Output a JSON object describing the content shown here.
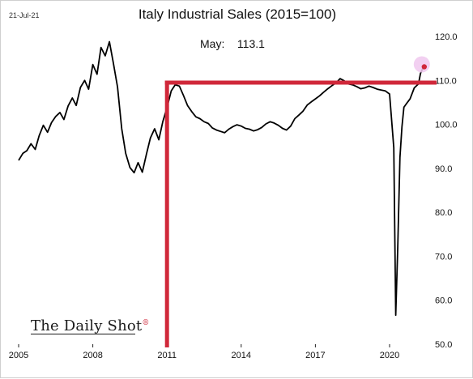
{
  "header": {
    "date": "21-Jul-21"
  },
  "brand": {
    "name": "The Daily Shot",
    "mark": "®"
  },
  "colors": {
    "line": "#000000",
    "annotation": "#d0283a",
    "highlight": "#f0c8ee",
    "background": "#ffffff"
  },
  "chart_data": {
    "type": "line",
    "title": "Italy Industrial Sales (2015=100)",
    "latest_label": "May:",
    "latest_value": "113.1",
    "xlabel": "",
    "ylabel": "",
    "xlim": [
      2005.0,
      2021.9
    ],
    "ylim": [
      50,
      122
    ],
    "x_ticks": [
      {
        "value": 2005,
        "label": "2005"
      },
      {
        "value": 2008,
        "label": "2008"
      },
      {
        "value": 2011,
        "label": "2011"
      },
      {
        "value": 2014,
        "label": "2014"
      },
      {
        "value": 2017,
        "label": "2017"
      },
      {
        "value": 2020,
        "label": "2020"
      }
    ],
    "y_ticks": [
      {
        "value": 50,
        "label": "50.0"
      },
      {
        "value": 60,
        "label": "60.0"
      },
      {
        "value": 70,
        "label": "70.0"
      },
      {
        "value": 80,
        "label": "80.0"
      },
      {
        "value": 90,
        "label": "90.0"
      },
      {
        "value": 100,
        "label": "100.0"
      },
      {
        "value": 110,
        "label": "110.0"
      },
      {
        "value": 120,
        "label": "120.0"
      }
    ],
    "y_axis_side": "right",
    "grid": false,
    "reference_lines": [
      {
        "orientation": "vertical",
        "x": 2011.0,
        "y_from": 50,
        "y_to": 109.5
      },
      {
        "orientation": "horizontal",
        "y": 109.5,
        "x_from": 2011.0,
        "x_to": 2021.9
      }
    ],
    "highlight_point": {
      "x": 2021.37,
      "y": 113.1
    },
    "series": [
      {
        "name": "",
        "points": [
          [
            2005.0,
            91.8
          ],
          [
            2005.17,
            93.4
          ],
          [
            2005.33,
            94.0
          ],
          [
            2005.5,
            95.6
          ],
          [
            2005.67,
            94.3
          ],
          [
            2005.83,
            97.4
          ],
          [
            2006.0,
            99.8
          ],
          [
            2006.17,
            98.2
          ],
          [
            2006.33,
            100.4
          ],
          [
            2006.5,
            101.8
          ],
          [
            2006.67,
            102.7
          ],
          [
            2006.83,
            101.1
          ],
          [
            2007.0,
            104.2
          ],
          [
            2007.17,
            106.0
          ],
          [
            2007.33,
            104.3
          ],
          [
            2007.5,
            108.4
          ],
          [
            2007.67,
            110.0
          ],
          [
            2007.83,
            108.0
          ],
          [
            2008.0,
            113.6
          ],
          [
            2008.17,
            111.4
          ],
          [
            2008.33,
            117.5
          ],
          [
            2008.5,
            115.6
          ],
          [
            2008.67,
            118.8
          ],
          [
            2008.83,
            114.0
          ],
          [
            2009.0,
            108.5
          ],
          [
            2009.17,
            99.0
          ],
          [
            2009.33,
            93.4
          ],
          [
            2009.5,
            90.2
          ],
          [
            2009.67,
            89.0
          ],
          [
            2009.83,
            91.3
          ],
          [
            2010.0,
            89.1
          ],
          [
            2010.17,
            93.3
          ],
          [
            2010.33,
            96.9
          ],
          [
            2010.5,
            99.0
          ],
          [
            2010.67,
            96.5
          ],
          [
            2010.83,
            100.6
          ],
          [
            2011.0,
            103.8
          ],
          [
            2011.17,
            107.6
          ],
          [
            2011.33,
            109.0
          ],
          [
            2011.5,
            108.7
          ],
          [
            2011.67,
            106.5
          ],
          [
            2011.83,
            104.3
          ],
          [
            2012.0,
            102.9
          ],
          [
            2012.17,
            101.7
          ],
          [
            2012.33,
            101.3
          ],
          [
            2012.5,
            100.6
          ],
          [
            2012.67,
            100.2
          ],
          [
            2012.83,
            99.2
          ],
          [
            2013.0,
            98.7
          ],
          [
            2013.17,
            98.4
          ],
          [
            2013.33,
            98.1
          ],
          [
            2013.5,
            98.9
          ],
          [
            2013.67,
            99.5
          ],
          [
            2013.83,
            99.9
          ],
          [
            2014.0,
            99.6
          ],
          [
            2014.17,
            99.1
          ],
          [
            2014.33,
            98.9
          ],
          [
            2014.5,
            98.5
          ],
          [
            2014.67,
            98.8
          ],
          [
            2014.83,
            99.3
          ],
          [
            2015.0,
            100.1
          ],
          [
            2015.17,
            100.6
          ],
          [
            2015.33,
            100.3
          ],
          [
            2015.5,
            99.8
          ],
          [
            2015.67,
            99.1
          ],
          [
            2015.83,
            98.7
          ],
          [
            2016.0,
            99.6
          ],
          [
            2016.17,
            101.3
          ],
          [
            2016.33,
            102.1
          ],
          [
            2016.5,
            103.0
          ],
          [
            2016.67,
            104.4
          ],
          [
            2016.83,
            105.1
          ],
          [
            2017.0,
            105.8
          ],
          [
            2017.17,
            106.5
          ],
          [
            2017.33,
            107.3
          ],
          [
            2017.5,
            108.1
          ],
          [
            2017.67,
            108.8
          ],
          [
            2017.83,
            109.4
          ],
          [
            2018.0,
            110.4
          ],
          [
            2018.17,
            109.9
          ],
          [
            2018.33,
            109.2
          ],
          [
            2018.5,
            109.0
          ],
          [
            2018.67,
            108.6
          ],
          [
            2018.83,
            108.1
          ],
          [
            2019.0,
            108.3
          ],
          [
            2019.17,
            108.7
          ],
          [
            2019.33,
            108.4
          ],
          [
            2019.5,
            108.0
          ],
          [
            2019.67,
            107.8
          ],
          [
            2019.83,
            107.6
          ],
          [
            2020.0,
            106.9
          ],
          [
            2020.17,
            94.7
          ],
          [
            2020.25,
            56.6
          ],
          [
            2020.33,
            72.0
          ],
          [
            2020.42,
            92.5
          ],
          [
            2020.5,
            99.5
          ],
          [
            2020.58,
            103.9
          ],
          [
            2020.67,
            104.6
          ],
          [
            2020.83,
            105.8
          ],
          [
            2021.0,
            108.3
          ],
          [
            2021.17,
            109.2
          ],
          [
            2021.25,
            111.6
          ],
          [
            2021.37,
            113.1
          ]
        ]
      }
    ]
  }
}
